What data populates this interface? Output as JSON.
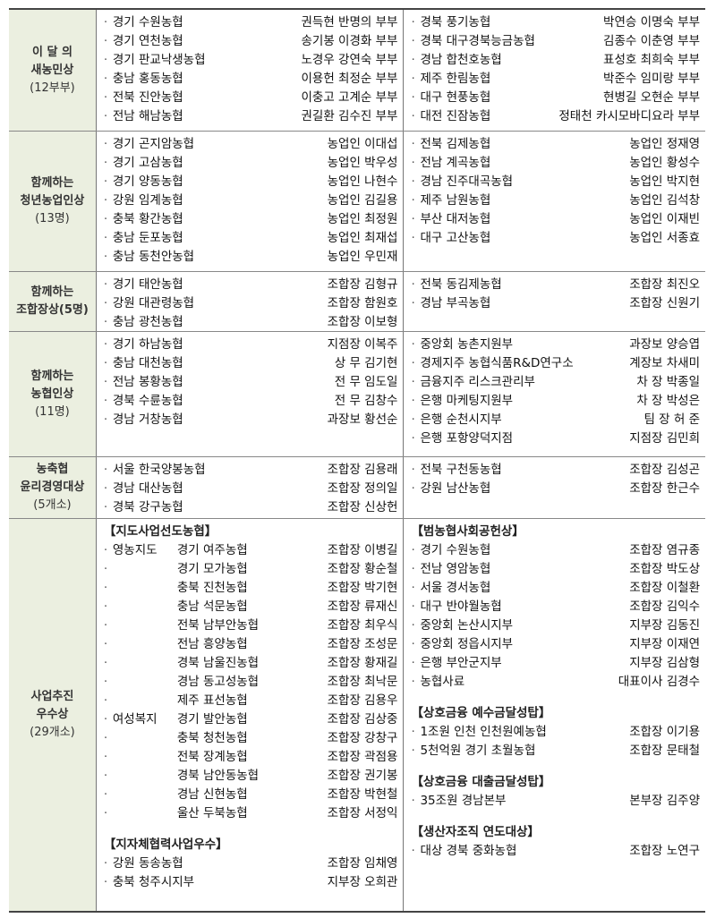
{
  "sections": [
    {
      "label": [
        "이 달 의",
        "새농민상",
        "(12부부)"
      ],
      "left": [
        {
          "items": [
            {
              "org": "경기  수원농협",
              "person": "권득현  반명의  부부"
            },
            {
              "org": "경기  연천농협",
              "person": "송기봉  이경화  부부"
            },
            {
              "org": "경기  판교낙생농협",
              "person": "노경우  강연숙  부부"
            },
            {
              "org": "충남  홍동농협",
              "person": "이용헌  최정순  부부"
            },
            {
              "org": "전북  진안농협",
              "person": "이충고  고계순  부부"
            },
            {
              "org": "전남  해남농협",
              "person": "권길환  김수진  부부"
            }
          ]
        }
      ],
      "right": [
        {
          "items": [
            {
              "org": "경북  풍기농협",
              "person": "박연승  이명숙  부부"
            },
            {
              "org": "경북  대구경북능금농협",
              "person": "김종수  이춘영  부부"
            },
            {
              "org": "경남  합천호농협",
              "person": "표성호  최희숙  부부"
            },
            {
              "org": "제주  한림농협",
              "person": "박준수  임미랑  부부"
            },
            {
              "org": "대구  현풍농협",
              "person": "현병길  오현순  부부"
            },
            {
              "org": "대전  진잠농협",
              "person": "정태천  카시모바디요라  부부"
            }
          ]
        }
      ]
    },
    {
      "label": [
        "함께하는",
        "청년농업인상",
        "(13명)"
      ],
      "left": [
        {
          "items": [
            {
              "org": "경기  곤지암농협",
              "person": "농업인  이대섭"
            },
            {
              "org": "경기  고삼농협",
              "person": "농업인  박우성"
            },
            {
              "org": "경기  양동농협",
              "person": "농업인  나현수"
            },
            {
              "org": "강원  임계농협",
              "person": "농업인  김길용"
            },
            {
              "org": "충북  황간농협",
              "person": "농업인  최정원"
            },
            {
              "org": "충남  둔포농협",
              "person": "농업인  최재섭"
            },
            {
              "org": "충남  동천안농협",
              "person": "농업인  우민재"
            }
          ]
        }
      ],
      "right": [
        {
          "items": [
            {
              "org": "전북  김제농협",
              "person": "농업인  정재영"
            },
            {
              "org": "전남  계곡농협",
              "person": "농업인  황성수"
            },
            {
              "org": "경남  진주대곡농협",
              "person": "농업인  박지현"
            },
            {
              "org": "제주  남원농협",
              "person": "농업인  김석창"
            },
            {
              "org": "부산  대저농협",
              "person": "농업인  이재빈"
            },
            {
              "org": "대구  고산농협",
              "person": "농업인  서종효"
            }
          ]
        }
      ]
    },
    {
      "label": [
        "함께하는",
        "조합장상(5명)"
      ],
      "left": [
        {
          "items": [
            {
              "org": "경기  태안농협",
              "person": "조합장  김형규"
            },
            {
              "org": "강원  대관령농협",
              "person": "조합장  함원호"
            },
            {
              "org": "충남  광천농협",
              "person": "조합장  이보형"
            }
          ]
        }
      ],
      "right": [
        {
          "items": [
            {
              "org": "전북  동김제농협",
              "person": "조합장  최진오"
            },
            {
              "org": "경남  부곡농협",
              "person": "조합장  신원기"
            }
          ]
        }
      ]
    },
    {
      "label": [
        "함께하는",
        "농협인상",
        "(11명)"
      ],
      "left": [
        {
          "items": [
            {
              "org": "경기  하남농협",
              "person": "지점장  이복주"
            },
            {
              "org": "충남  대천농협",
              "person": "상    무  김기현"
            },
            {
              "org": "전남  봉황농협",
              "person": "전    무  임도일"
            },
            {
              "org": "경북  수륜농협",
              "person": "전    무  김창수"
            },
            {
              "org": "경남  거창농협",
              "person": "과장보  황선순"
            }
          ]
        }
      ],
      "right": [
        {
          "items": [
            {
              "org": "중앙회  농촌지원부",
              "person": "과장보  양승엽"
            },
            {
              "org": "경제지주  농협식품R&D연구소",
              "person": "계장보  차새미"
            },
            {
              "org": "금융지주  리스크관리부",
              "person": "차    장  박종일"
            },
            {
              "org": "은행  마케팅지원부",
              "person": "차    장  박성은"
            },
            {
              "org": "은행  순천시지부",
              "person": "팀    장  허    준"
            },
            {
              "org": "은행  포항양덕지점",
              "person": "지점장  김민희"
            }
          ]
        }
      ]
    },
    {
      "label": [
        "농축협",
        "윤리경영대상",
        "(5개소)"
      ],
      "left": [
        {
          "items": [
            {
              "org": "서울  한국양봉농협",
              "person": "조합장  김용래"
            },
            {
              "org": "경남  대산농협",
              "person": "조합장  정의일"
            },
            {
              "org": "경북  강구농협",
              "person": "조합장  신상헌"
            }
          ]
        }
      ],
      "right": [
        {
          "items": [
            {
              "org": "전북  구천동농협",
              "person": "조합장  김성곤"
            },
            {
              "org": "강원  남산농협",
              "person": "조합장  한근수"
            }
          ]
        }
      ]
    },
    {
      "label": [
        "사업추진",
        "우수상",
        "(29개소)"
      ],
      "left": [
        {
          "heading": "【지도사업선도농협】",
          "items": [
            {
              "prefix": "영농지도",
              "org": "경기  여주농협",
              "person": "조합장  이병길"
            },
            {
              "prefix": "",
              "org": "경기  모가농협",
              "person": "조합장  황순철"
            },
            {
              "prefix": "",
              "org": "충북  진천농협",
              "person": "조합장  박기현"
            },
            {
              "prefix": "",
              "org": "충남  석문농협",
              "person": "조합장  류재신"
            },
            {
              "prefix": "",
              "org": "전북  남부안농협",
              "person": "조합장  최우식"
            },
            {
              "prefix": "",
              "org": "전남  흥양농협",
              "person": "조합장  조성문"
            },
            {
              "prefix": "",
              "org": "경북  남울진농협",
              "person": "조합장  황재길"
            },
            {
              "prefix": "",
              "org": "경남  동고성농협",
              "person": "조합장  최낙문"
            },
            {
              "prefix": "",
              "org": "제주  표선농협",
              "person": "조합장  김용우"
            },
            {
              "prefix": "여성복지",
              "org": "경기  발안농협",
              "person": "조합장  김상중"
            },
            {
              "prefix": "",
              "org": "충북  청천농협",
              "person": "조합장  강창구"
            },
            {
              "prefix": "",
              "org": "전북  장계농협",
              "person": "조합장  곽점용"
            },
            {
              "prefix": "",
              "org": "경북  남안동농협",
              "person": "조합장  권기봉"
            },
            {
              "prefix": "",
              "org": "경남  신현농협",
              "person": "조합장  박현철"
            },
            {
              "prefix": "",
              "org": "울산  두북농협",
              "person": "조합장  서정익"
            }
          ]
        },
        {
          "heading": "【지자체협력사업우수】",
          "items": [
            {
              "org": "강원  동송농협",
              "person": "조합장  임채영"
            },
            {
              "org": "충북  청주시지부",
              "person": "지부장  오희관"
            }
          ]
        }
      ],
      "right": [
        {
          "heading": "【범농협사회공헌상】",
          "items": [
            {
              "org": "경기  수원농협",
              "person": "조합장  염규종"
            },
            {
              "org": "전남  영암농협",
              "person": "조합장  박도상"
            },
            {
              "org": "서울  경서농협",
              "person": "조합장  이철환"
            },
            {
              "org": "대구  반야월농협",
              "person": "조합장  김익수"
            },
            {
              "org": "중앙회  논산시지부",
              "person": "지부장  김동진"
            },
            {
              "org": "중앙회  정읍시지부",
              "person": "지부장  이재연"
            },
            {
              "org": "은행  부안군지부",
              "person": "지부장  김삼형"
            },
            {
              "org": "농협사료",
              "person": "대표이사  김경수"
            }
          ]
        },
        {
          "heading": "【상호금융  예수금달성탑】",
          "items": [
            {
              "org": "1조원  인천  인천원예농협",
              "person": "조합장  이기용"
            },
            {
              "org": "5천억원  경기  초월농협",
              "person": "조합장  문태철"
            }
          ]
        },
        {
          "heading": "【상호금융  대출금달성탑】",
          "items": [
            {
              "org": "35조원  경남본부",
              "person": "본부장  김주양"
            }
          ]
        },
        {
          "heading": "【생산자조직  연도대상】",
          "items": [
            {
              "org": "대상  경북  중화농협",
              "person": "조합장  노연구"
            }
          ]
        }
      ]
    }
  ],
  "bullet": "·",
  "colors": {
    "label_bg": "#ebefe0",
    "border": "#444444"
  }
}
